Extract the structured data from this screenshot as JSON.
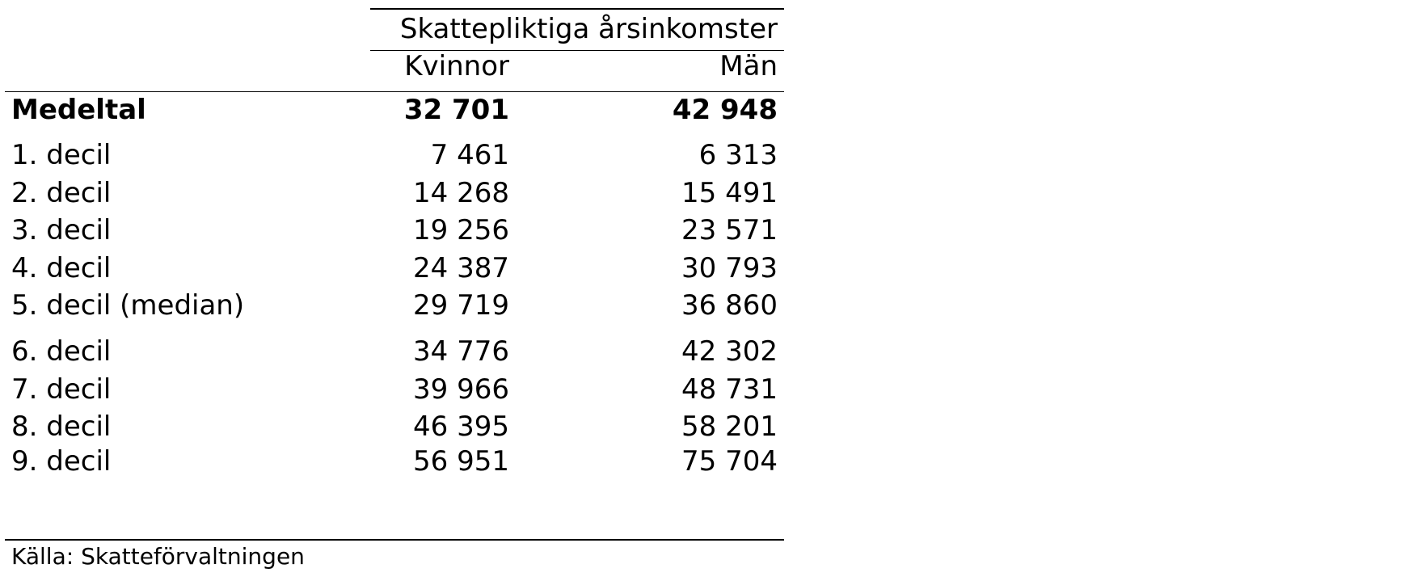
{
  "table": {
    "group_header": "Skattepliktiga årsinkomster",
    "col_women": "Kvinnor",
    "col_men": "Män",
    "rows": [
      {
        "label": "Medeltal",
        "women": "32 701",
        "men": "42 948",
        "bold": true
      },
      {
        "label": "1. decil",
        "women": "7 461",
        "men": "6 313"
      },
      {
        "label": "2. decil",
        "women": "14 268",
        "men": "15 491"
      },
      {
        "label": "3. decil",
        "women": "19 256",
        "men": "23 571"
      },
      {
        "label": "4. decil",
        "women": "24 387",
        "men": "30 793"
      },
      {
        "label": "5. decil (median)",
        "women": "29 719",
        "men": "36 860"
      },
      {
        "label": "6. decil",
        "women": "34 776",
        "men": "42 302"
      },
      {
        "label": "7. decil",
        "women": "39 966",
        "men": "48 731"
      },
      {
        "label": "8. decil",
        "women": "46 395",
        "men": "58 201"
      },
      {
        "label": "9. decil",
        "women": "56 951",
        "men": "75 704"
      }
    ]
  },
  "source": "Källa: Skatteförvaltningen"
}
